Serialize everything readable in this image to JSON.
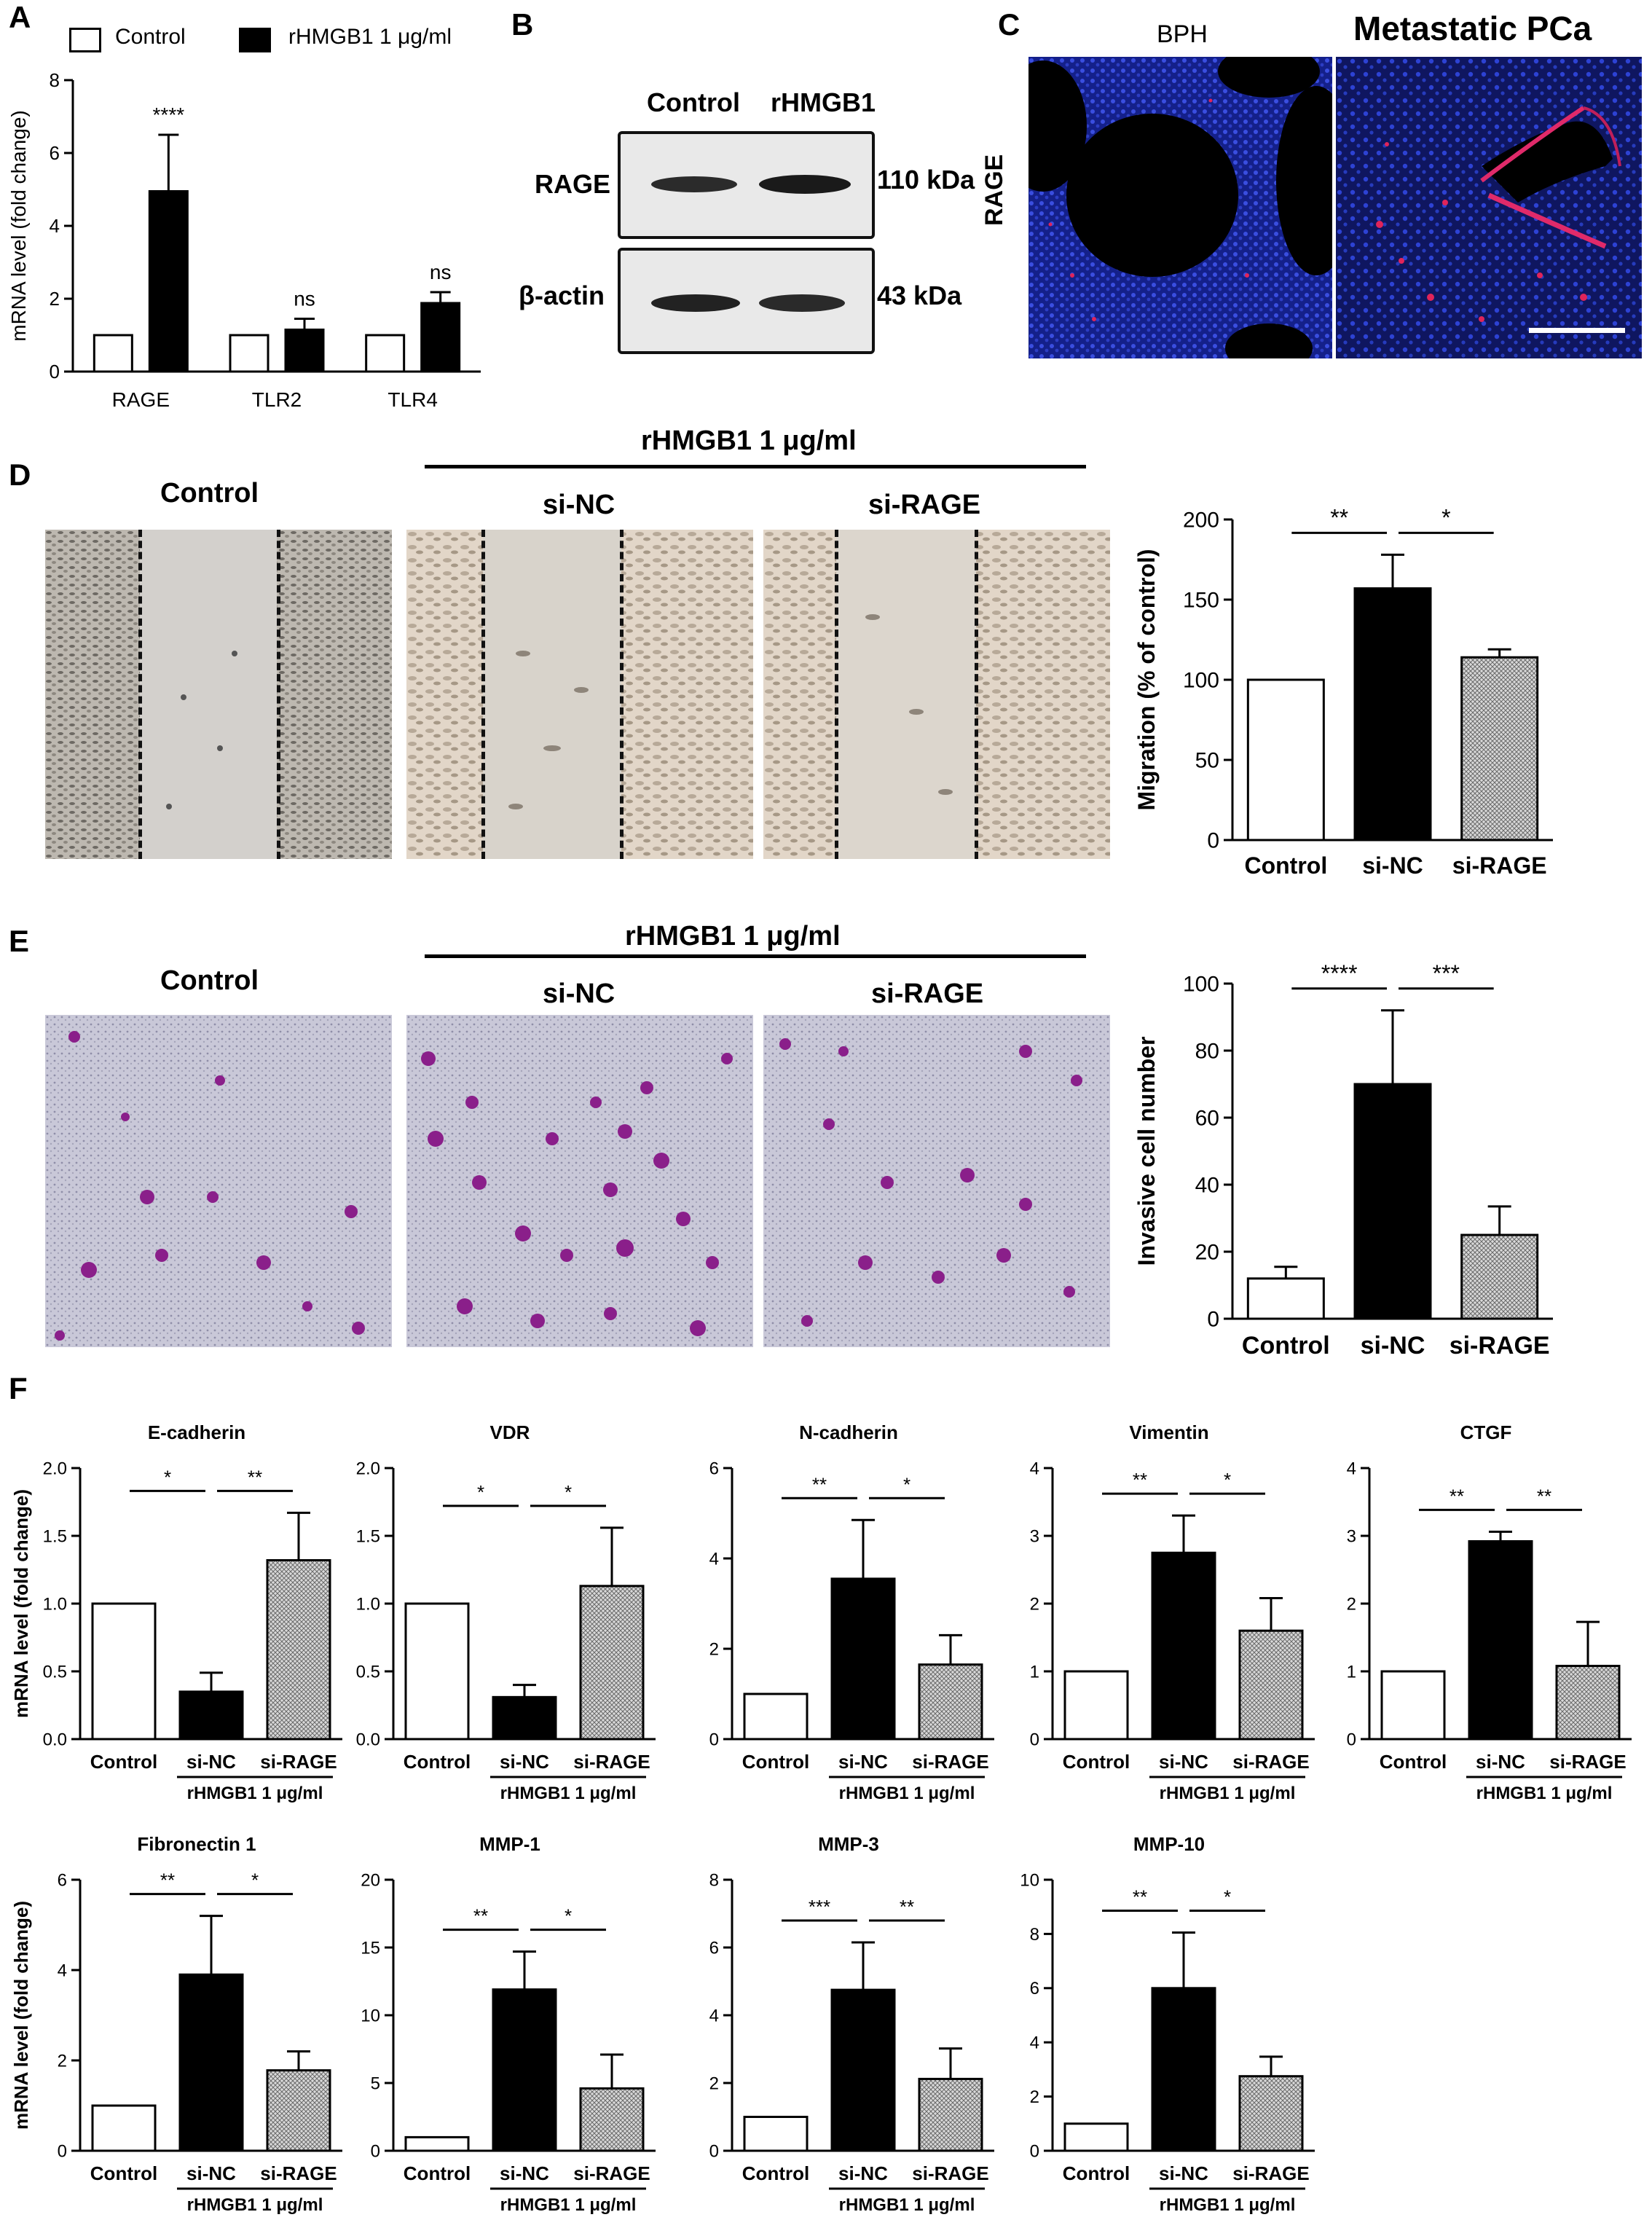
{
  "panels": {
    "A": "A",
    "B": "B",
    "C": "C",
    "D": "D",
    "E": "E",
    "F": "F"
  },
  "colors": {
    "control_fill": "#ffffff",
    "sinc_fill": "#000000",
    "sirage_fill": "#c8c8c8",
    "nuclei_blue": "#2a3ad0",
    "rage_red": "#e0245a",
    "crystal_violet": "#8a1f8a",
    "wound_bg": "#d6d2cc"
  },
  "panel_a": {
    "legend_control": "Control",
    "legend_treat": "rHMGB1 1 μg/ml"
  },
  "panel_b": {
    "col_control": "Control",
    "col_treat": "rHMGB1",
    "row1_label": "RAGE",
    "row1_kda": "110 kDa",
    "row2_label": "β-actin",
    "row2_kda": "43 kDa"
  },
  "panel_c": {
    "left_title": "BPH",
    "right_title": "Metastatic PCa",
    "side_label": "RAGE"
  },
  "panel_d": {
    "treat_header": "rHMGB1 1 μg/ml",
    "img_control": "Control",
    "img_sinc": "si-NC",
    "img_sirage": "si-RAGE"
  },
  "panel_e": {
    "treat_header": "rHMGB1 1 μg/ml",
    "img_control": "Control",
    "img_sinc": "si-NC",
    "img_sirage": "si-RAGE"
  },
  "chart_data": [
    {
      "id": "A",
      "type": "bar",
      "title": "",
      "ylabel": "mRNA level (fold change)",
      "ylim": [
        0,
        8
      ],
      "yticks": [
        0,
        2,
        4,
        6,
        8
      ],
      "categories": [
        "RAGE",
        "TLR2",
        "TLR4"
      ],
      "series": [
        {
          "name": "Control",
          "values": [
            1,
            1,
            1
          ],
          "errors": [
            0,
            0,
            0
          ]
        },
        {
          "name": "rHMGB1 1 μg/ml",
          "values": [
            4.95,
            1.15,
            1.88
          ],
          "errors": [
            1.55,
            0.3,
            0.3
          ]
        }
      ],
      "annotations": [
        "****",
        "ns",
        "ns"
      ]
    },
    {
      "id": "D",
      "type": "bar",
      "ylabel": "Migration (% of control)",
      "ylim": [
        0,
        200
      ],
      "yticks": [
        0,
        50,
        100,
        150,
        200
      ],
      "categories": [
        "Control",
        "si-NC",
        "si-RAGE"
      ],
      "values": [
        100,
        157,
        114
      ],
      "errors": [
        0,
        21,
        5
      ],
      "sig": [
        {
          "from": 0,
          "to": 1,
          "text": "**"
        },
        {
          "from": 1,
          "to": 2,
          "text": "*"
        }
      ]
    },
    {
      "id": "E",
      "type": "bar",
      "ylabel": "Invasive cell number",
      "ylim": [
        0,
        100
      ],
      "yticks": [
        0,
        20,
        40,
        60,
        80,
        100
      ],
      "categories": [
        "Control",
        "si-NC",
        "si-RAGE"
      ],
      "values": [
        12,
        70,
        25
      ],
      "errors": [
        3.5,
        22,
        8.5
      ],
      "sig": [
        {
          "from": 0,
          "to": 1,
          "text": "****"
        },
        {
          "from": 1,
          "to": 2,
          "text": "***"
        }
      ]
    },
    {
      "id": "F1",
      "type": "bar",
      "title": "E-cadherin",
      "ylabel": "mRNA level (fold change)",
      "ylim": [
        0,
        2.0
      ],
      "yticks": [
        "0.0",
        "0.5",
        "1.0",
        "1.5",
        "2.0"
      ],
      "categories": [
        "Control",
        "si-NC",
        "si-RAGE"
      ],
      "values": [
        1.0,
        0.35,
        1.32
      ],
      "errors": [
        0,
        0.14,
        0.35
      ],
      "sig": [
        {
          "from": 0,
          "to": 1,
          "text": "*"
        },
        {
          "from": 1,
          "to": 2,
          "text": "**"
        }
      ],
      "group_label": "rHMGB1 1 μg/ml"
    },
    {
      "id": "F2",
      "type": "bar",
      "title": "VDR",
      "ylabel": "",
      "ylim": [
        0,
        2.0
      ],
      "yticks": [
        "0.0",
        "0.5",
        "1.0",
        "1.5",
        "2.0"
      ],
      "categories": [
        "Control",
        "si-NC",
        "si-RAGE"
      ],
      "values": [
        1.0,
        0.31,
        1.13
      ],
      "errors": [
        0,
        0.09,
        0.43
      ],
      "sig": [
        {
          "from": 0,
          "to": 1,
          "text": "*"
        },
        {
          "from": 1,
          "to": 2,
          "text": "*"
        }
      ],
      "group_label": "rHMGB1 1 μg/ml"
    },
    {
      "id": "F3",
      "type": "bar",
      "title": "N-cadherin",
      "ylabel": "",
      "ylim": [
        0,
        6
      ],
      "yticks": [
        "0",
        "2",
        "4",
        "6"
      ],
      "categories": [
        "Control",
        "si-NC",
        "si-RAGE"
      ],
      "values": [
        1.0,
        3.55,
        1.65
      ],
      "errors": [
        0,
        1.3,
        0.65
      ],
      "sig": [
        {
          "from": 0,
          "to": 1,
          "text": "**"
        },
        {
          "from": 1,
          "to": 2,
          "text": "*"
        }
      ],
      "group_label": "rHMGB1 1 μg/ml"
    },
    {
      "id": "F4",
      "type": "bar",
      "title": "Vimentin",
      "ylabel": "",
      "ylim": [
        0,
        4
      ],
      "yticks": [
        "0",
        "1",
        "2",
        "3",
        "4"
      ],
      "categories": [
        "Control",
        "si-NC",
        "si-RAGE"
      ],
      "values": [
        1.0,
        2.75,
        1.6
      ],
      "errors": [
        0,
        0.55,
        0.48
      ],
      "sig": [
        {
          "from": 0,
          "to": 1,
          "text": "**"
        },
        {
          "from": 1,
          "to": 2,
          "text": "*"
        }
      ],
      "group_label": "rHMGB1 1 μg/ml"
    },
    {
      "id": "F5",
      "type": "bar",
      "title": "CTGF",
      "ylabel": "",
      "ylim": [
        0,
        4
      ],
      "yticks": [
        "0",
        "1",
        "2",
        "3",
        "4"
      ],
      "categories": [
        "Control",
        "si-NC",
        "si-RAGE"
      ],
      "values": [
        1.0,
        2.92,
        1.08
      ],
      "errors": [
        0,
        0.14,
        0.65
      ],
      "sig": [
        {
          "from": 0,
          "to": 1,
          "text": "**"
        },
        {
          "from": 1,
          "to": 2,
          "text": "**"
        }
      ],
      "group_label": "rHMGB1 1 μg/ml"
    },
    {
      "id": "F6",
      "type": "bar",
      "title": "Fibronectin 1",
      "ylabel": "mRNA level (fold change)",
      "ylim": [
        0,
        6
      ],
      "yticks": [
        "0",
        "2",
        "4",
        "6"
      ],
      "categories": [
        "Control",
        "si-NC",
        "si-RAGE"
      ],
      "values": [
        1.0,
        3.9,
        1.78
      ],
      "errors": [
        0,
        1.3,
        0.42
      ],
      "sig": [
        {
          "from": 0,
          "to": 1,
          "text": "**"
        },
        {
          "from": 1,
          "to": 2,
          "text": "*"
        }
      ],
      "group_label": "rHMGB1 1 μg/ml"
    },
    {
      "id": "F7",
      "type": "bar",
      "title": "MMP-1",
      "ylabel": "",
      "ylim": [
        0,
        20
      ],
      "yticks": [
        "0",
        "5",
        "10",
        "15",
        "20"
      ],
      "categories": [
        "Control",
        "si-NC",
        "si-RAGE"
      ],
      "values": [
        1.0,
        11.9,
        4.6
      ],
      "errors": [
        0,
        2.8,
        2.5
      ],
      "sig": [
        {
          "from": 0,
          "to": 1,
          "text": "**"
        },
        {
          "from": 1,
          "to": 2,
          "text": "*"
        }
      ],
      "group_label": "rHMGB1 1 μg/ml"
    },
    {
      "id": "F8",
      "type": "bar",
      "title": "MMP-3",
      "ylabel": "",
      "ylim": [
        0,
        8
      ],
      "yticks": [
        "0",
        "2",
        "4",
        "6",
        "8"
      ],
      "categories": [
        "Control",
        "si-NC",
        "si-RAGE"
      ],
      "values": [
        1.0,
        4.75,
        2.12
      ],
      "errors": [
        0,
        1.4,
        0.9
      ],
      "sig": [
        {
          "from": 0,
          "to": 1,
          "text": "***"
        },
        {
          "from": 1,
          "to": 2,
          "text": "**"
        }
      ],
      "group_label": "rHMGB1 1 μg/ml"
    },
    {
      "id": "F9",
      "type": "bar",
      "title": "MMP-10",
      "ylabel": "",
      "ylim": [
        0,
        10
      ],
      "yticks": [
        "0",
        "2",
        "4",
        "6",
        "8",
        "10"
      ],
      "categories": [
        "Control",
        "si-NC",
        "si-RAGE"
      ],
      "values": [
        1.0,
        6.0,
        2.75
      ],
      "errors": [
        0,
        2.05,
        0.72
      ],
      "sig": [
        {
          "from": 0,
          "to": 1,
          "text": "**"
        },
        {
          "from": 1,
          "to": 2,
          "text": "*"
        }
      ],
      "group_label": "rHMGB1 1 μg/ml"
    }
  ]
}
